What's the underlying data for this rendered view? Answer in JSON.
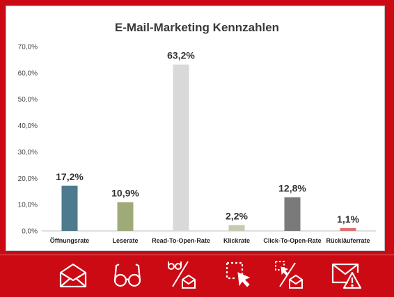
{
  "chart_data": {
    "type": "bar",
    "title": "E-Mail-Marketing Kennzahlen",
    "categories": [
      "Öffnungsrate",
      "Leserate",
      "Read-To-Open-Rate",
      "Klickrate",
      "Click-To-Open-Rate",
      "Rückläuferrate"
    ],
    "values": [
      17.2,
      10.9,
      63.2,
      2.2,
      12.8,
      1.1
    ],
    "value_labels": [
      "17,2%",
      "10,9%",
      "63,2%",
      "2,2%",
      "12,8%",
      "1,1%"
    ],
    "colors": [
      "#4d7a8c",
      "#9eaa78",
      "#d9d9d9",
      "#c6cbb0",
      "#7a7a7a",
      "#e07070"
    ],
    "ylim": [
      0,
      70
    ],
    "yticks": [
      "0,0%",
      "10,0%",
      "20,0%",
      "30,0%",
      "40,0%",
      "50,0%",
      "60,0%",
      "70,0%"
    ],
    "grid": false,
    "legend": "none"
  },
  "icons": [
    "envelope-open-icon",
    "glasses-icon",
    "glasses-over-envelope-icon",
    "click-cursor-icon",
    "click-over-envelope-icon",
    "envelope-warning-icon"
  ],
  "theme": {
    "background": "#cc0a14",
    "icon_color": "#ffffff"
  }
}
